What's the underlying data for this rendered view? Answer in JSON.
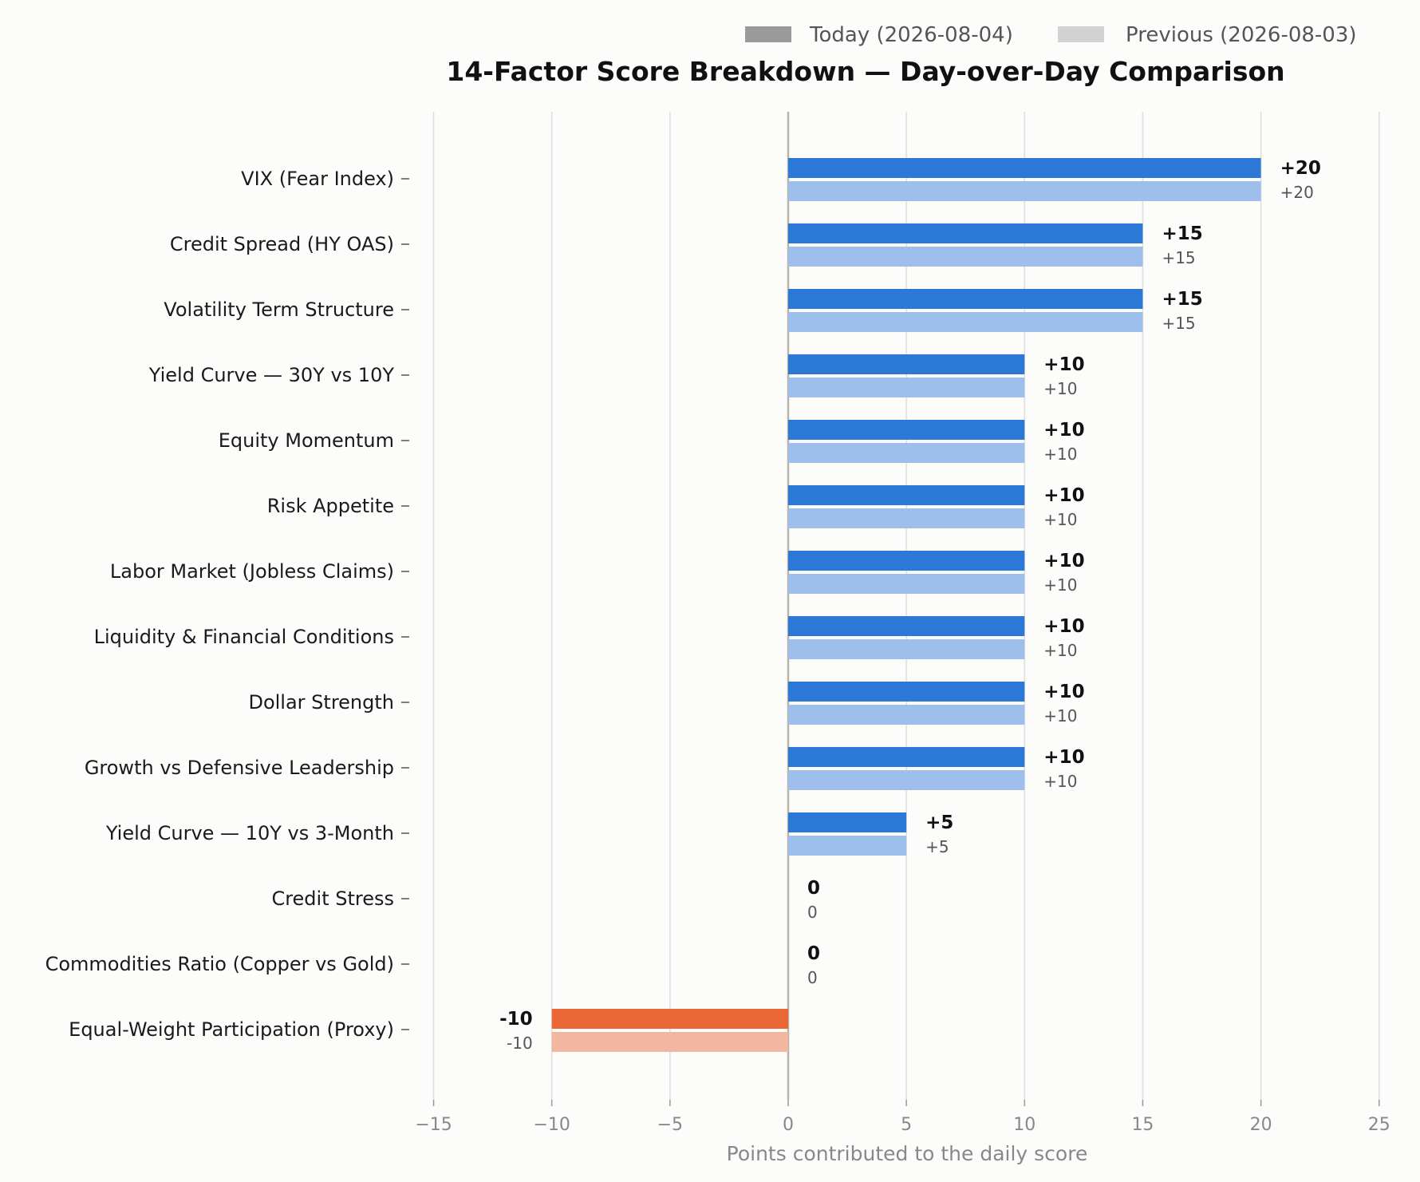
{
  "chart_data": {
    "type": "bar",
    "orientation": "horizontal",
    "title": "14-Factor Score Breakdown — Day-over-Day Comparison",
    "xlabel": "Points contributed to the daily score",
    "ylabel": "",
    "xlim": [
      -15,
      25
    ],
    "x_ticks": [
      -15,
      -10,
      -5,
      0,
      5,
      10,
      15,
      20,
      25
    ],
    "x_tick_labels": [
      "−15",
      "−10",
      "−5",
      "0",
      "5",
      "10",
      "15",
      "20",
      "25"
    ],
    "grid": "vertical",
    "legend_position": "top-right",
    "categories": [
      "VIX (Fear Index)",
      "Credit Spread (HY OAS)",
      "Volatility Term Structure",
      "Yield Curve — 30Y vs 10Y",
      "Equity Momentum",
      "Risk Appetite",
      "Labor Market (Jobless Claims)",
      "Liquidity & Financial Conditions",
      "Dollar Strength",
      "Growth vs Defensive Leadership",
      "Yield Curve — 10Y vs 3-Month",
      "Credit Stress",
      "Commodities Ratio (Copper vs Gold)",
      "Equal-Weight Participation (Proxy)"
    ],
    "series": [
      {
        "name": "Today (2026-08-04)",
        "values": [
          20,
          15,
          15,
          10,
          10,
          10,
          10,
          10,
          10,
          10,
          5,
          0,
          0,
          -10
        ],
        "labels": [
          "+20",
          "+15",
          "+15",
          "+10",
          "+10",
          "+10",
          "+10",
          "+10",
          "+10",
          "+10",
          "+5",
          "0",
          "0",
          "-10"
        ],
        "color_positive": "#2b78d6",
        "color_negative": "#ea6634"
      },
      {
        "name": "Previous (2026-08-03)",
        "values": [
          20,
          15,
          15,
          10,
          10,
          10,
          10,
          10,
          10,
          10,
          5,
          0,
          0,
          -10
        ],
        "labels": [
          "+20",
          "+15",
          "+15",
          "+10",
          "+10",
          "+10",
          "+10",
          "+10",
          "+10",
          "+10",
          "+5",
          "0",
          "0",
          "-10"
        ],
        "color_positive": "#9ebfeb",
        "color_negative": "#f1b7a0"
      }
    ],
    "legend_colors": [
      "#9b9b9b",
      "#d3d3d3"
    ]
  }
}
